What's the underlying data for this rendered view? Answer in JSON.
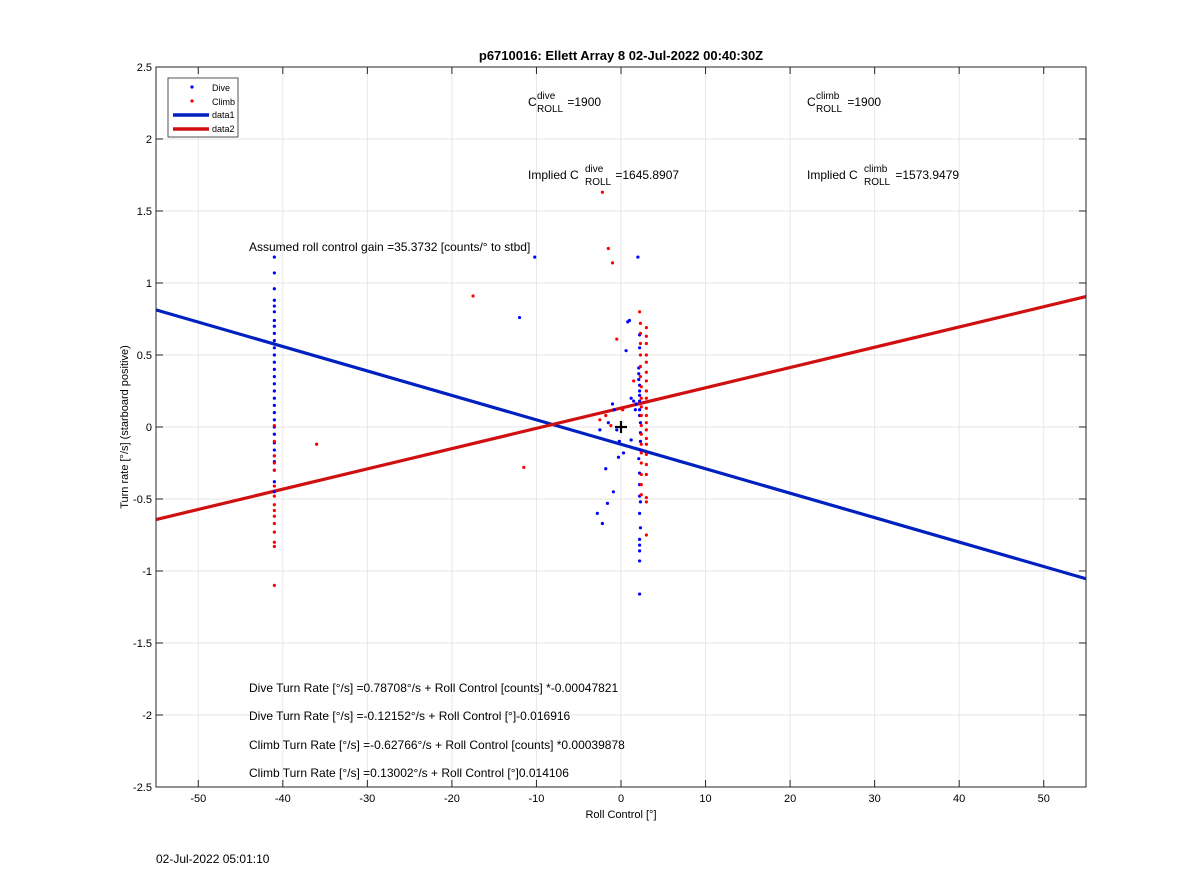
{
  "chart_data": {
    "type": "scatter",
    "title": "p6710016: Ellett Array 8 02-Jul-2022 00:40:30Z",
    "xlabel": "Roll Control [°]",
    "ylabel": "Turn rate [°/s] (starboard positive)",
    "xlim": [
      -55,
      55
    ],
    "ylim": [
      -2.5,
      2.5
    ],
    "x_ticks": [
      -50,
      -40,
      -30,
      -20,
      -10,
      0,
      10,
      20,
      30,
      40,
      50
    ],
    "y_ticks": [
      -2.5,
      -2,
      -1.5,
      -1,
      -0.5,
      0,
      0.5,
      1,
      1.5,
      2,
      2.5
    ],
    "grid": true,
    "legend_position": "top-left",
    "legend": [
      "Dive",
      "Climb",
      "data1",
      "data2"
    ],
    "series": [
      {
        "name": "Dive",
        "kind": "points",
        "color": "#0000ff",
        "x": [
          -41,
          -41,
          -41,
          -41,
          -41,
          -41,
          -41,
          -41,
          -41,
          -41,
          -41,
          -41,
          -41,
          -41,
          -41,
          -41,
          -41,
          -41,
          -41,
          -41,
          -41,
          -41,
          -41,
          -41,
          -41,
          -41,
          -41,
          -41,
          -41,
          -41,
          -10.2,
          -12,
          -2.5,
          -1.8,
          -1.5,
          -1,
          -0.8,
          -0.5,
          -0.2,
          0.3,
          0.6,
          0.8,
          1,
          1.2,
          1.5,
          1.7,
          1.8,
          -2.8,
          -2.2,
          -1.6,
          -0.9,
          -0.3,
          1.2,
          2,
          2.1,
          2.1,
          2.1,
          2.2,
          2.2,
          2.2,
          2.2,
          2.2,
          2.2,
          2.3,
          2.3,
          2.3,
          2.3,
          2.1,
          2.2,
          2.2,
          2.2,
          2.3,
          2.2,
          2.3,
          2.2,
          2.2,
          2.2,
          2.2,
          2.2,
          2.2,
          2.2
        ],
        "y": [
          1.18,
          1.07,
          0.96,
          0.88,
          0.84,
          0.8,
          0.74,
          0.7,
          0.65,
          0.6,
          0.55,
          0.5,
          0.45,
          0.4,
          0.35,
          0.3,
          0.25,
          0.2,
          0.15,
          0.1,
          0.05,
          0,
          -0.05,
          -0.11,
          -0.16,
          -0.2,
          -0.24,
          -0.3,
          -0.38,
          -0.45,
          1.18,
          0.76,
          -0.02,
          -0.29,
          0.03,
          0.16,
          0.12,
          -0.02,
          -0.1,
          -0.18,
          0.53,
          0.73,
          0.74,
          0.2,
          0.18,
          0.12,
          0.16,
          -0.6,
          -0.67,
          -0.53,
          -0.45,
          -0.21,
          -0.09,
          1.18,
          0.41,
          0.37,
          0.33,
          0.29,
          0.25,
          0.22,
          0.18,
          0.12,
          0.08,
          0.03,
          -0.04,
          -0.1,
          -0.16,
          -0.22,
          -0.32,
          -0.4,
          -0.48,
          -0.52,
          -0.6,
          -0.7,
          -0.78,
          -0.82,
          -0.86,
          -0.93,
          -1.16,
          0.55,
          0.64
        ]
      },
      {
        "name": "Climb",
        "kind": "points",
        "color": "#ff0000",
        "x": [
          -41,
          -41,
          -41,
          -41,
          -41,
          -41,
          -41,
          -41,
          -41,
          -41,
          -41,
          -41,
          -41,
          -41,
          -41,
          -36,
          -17.5,
          -11.5,
          -2.2,
          -1.5,
          -1,
          -1.8,
          -2.5,
          -1.2,
          -0.5,
          0.2,
          1.5,
          2.2,
          2.3,
          2.3,
          2.3,
          2.3,
          2.3,
          2.3,
          2.4,
          2.4,
          2.4,
          2.4,
          2.4,
          2.4,
          2.4,
          2.4,
          2.4,
          2.4,
          2.4,
          2.4,
          3,
          3,
          3,
          3,
          3,
          3,
          3,
          3,
          3,
          3,
          3,
          3,
          3,
          3,
          3,
          3,
          3,
          3,
          3,
          3,
          3
        ],
        "y": [
          0.01,
          -0.1,
          -0.2,
          -0.25,
          -0.3,
          -0.41,
          -0.48,
          -0.54,
          -0.58,
          -0.62,
          -0.67,
          -0.73,
          -0.8,
          -0.83,
          -1.1,
          -0.12,
          0.91,
          -0.28,
          1.63,
          1.24,
          1.14,
          0.08,
          0.05,
          0.01,
          0.61,
          0.12,
          0.32,
          0.8,
          0.72,
          0.65,
          0.58,
          0.5,
          0.42,
          0.35,
          0.28,
          0.2,
          0.14,
          0.08,
          0.01,
          -0.05,
          -0.12,
          -0.18,
          -0.25,
          -0.33,
          -0.4,
          -0.47,
          0.69,
          0.63,
          0.58,
          0.5,
          0.45,
          0.38,
          0.32,
          0.25,
          0.2,
          0.13,
          0.08,
          0.03,
          -0.02,
          -0.08,
          -0.12,
          -0.19,
          -0.26,
          -0.33,
          -0.49,
          -0.52,
          -0.75
        ]
      },
      {
        "name": "data1",
        "kind": "line",
        "color": "#0020c0",
        "x": [
          -55,
          55
        ],
        "y": [
          0.8134,
          -1.0537
        ]
      },
      {
        "name": "data2",
        "kind": "line",
        "color": "#d01010",
        "x": [
          -55,
          55
        ],
        "y": [
          -0.6429,
          0.9059
        ]
      }
    ],
    "annotations": {
      "c_dive_base": "C",
      "c_dive_sup": "dive",
      "c_dive_sub": "ROLL",
      "c_dive_val": " =1900",
      "c_climb_base": "C",
      "c_climb_sup": "climb",
      "c_climb_sub": "ROLL",
      "c_climb_val": " =1900",
      "implied_dive_prefix": "Implied C",
      "implied_dive_sup": "dive",
      "implied_dive_sub": "ROLL",
      "implied_dive_val": " =1645.8907",
      "implied_climb_prefix": "Implied C",
      "implied_climb_sup": "climb",
      "implied_climb_sub": "ROLL",
      "implied_climb_val": " =1573.9479",
      "gain": "Assumed roll control gain =35.3732 [counts/° to stbd]",
      "eq1": "Dive Turn Rate [°/s] =0.78708°/s + Roll Control [counts] *-0.00047821",
      "eq2": "Dive Turn Rate [°/s] =-0.12152°/s + Roll Control [°]-0.016916",
      "eq3": "Climb Turn Rate [°/s] =-0.62766°/s + Roll Control [counts] *0.00039878",
      "eq4": "Climb Turn Rate [°/s] =0.13002°/s + Roll Control [°]0.014106"
    }
  },
  "footer": {
    "timestamp": "02-Jul-2022 05:01:10"
  }
}
